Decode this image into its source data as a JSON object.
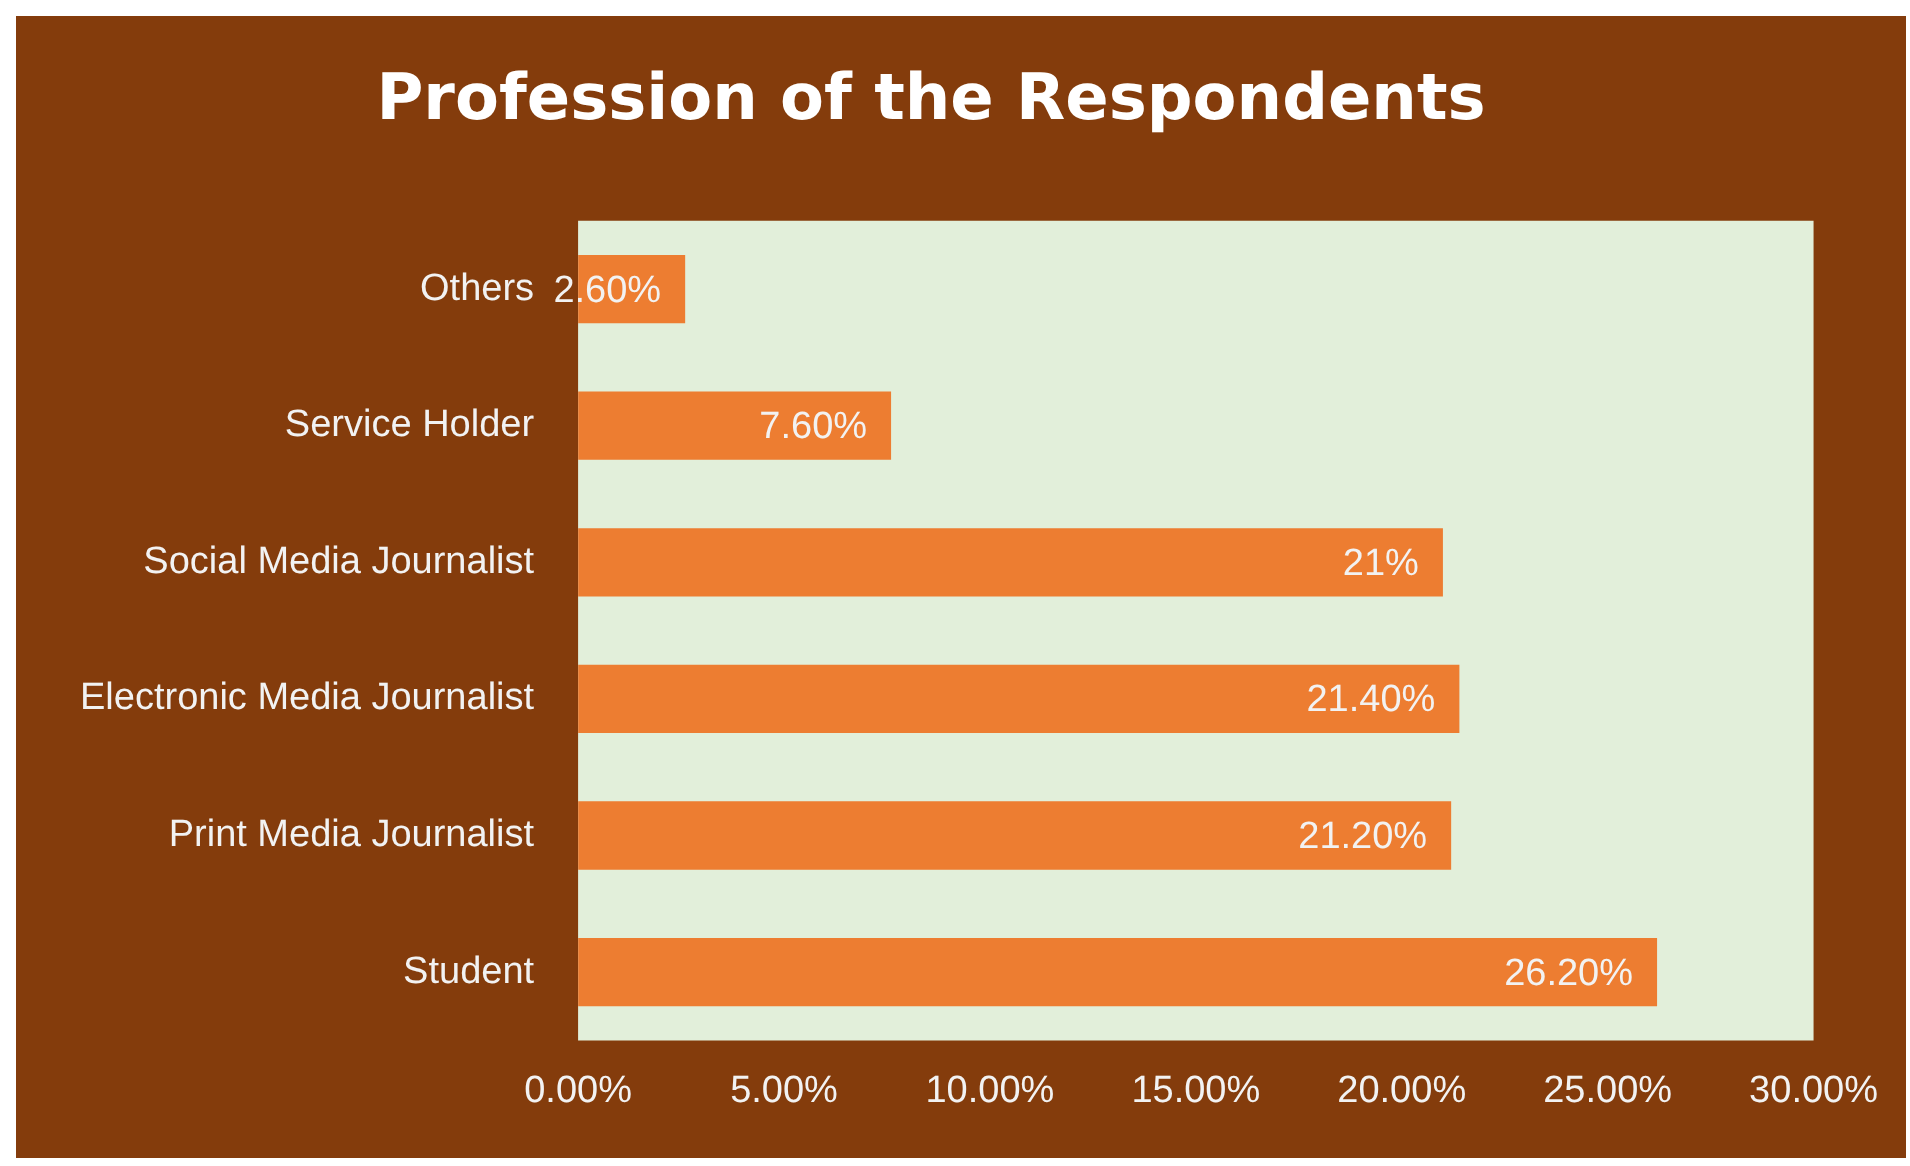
{
  "chart_data": {
    "type": "bar",
    "orientation": "horizontal",
    "title": "Profession of the Respondents",
    "categories": [
      "Others",
      "Service Holder",
      "Social Media Journalist",
      "Electronic Media Journalist",
      "Print Media Journalist",
      "Student"
    ],
    "values": [
      2.6,
      7.6,
      21,
      21.4,
      21.2,
      26.2
    ],
    "value_labels": [
      "2.60%",
      "7.60%",
      "21%",
      "21.40%",
      "21.20%",
      "26.20%"
    ],
    "color": "#ed7d31",
    "xlim": [
      0,
      30
    ],
    "xticks": [
      {
        "value": 0,
        "label": "0.00%"
      },
      {
        "value": 5,
        "label": "5.00%"
      },
      {
        "value": 10,
        "label": "10.00%"
      },
      {
        "value": 15,
        "label": "15.00%"
      },
      {
        "value": 20,
        "label": "20.00%"
      },
      {
        "value": 25,
        "label": "25.00%"
      },
      {
        "value": 30,
        "label": "30.00%"
      }
    ],
    "grid": false,
    "legend": false
  }
}
